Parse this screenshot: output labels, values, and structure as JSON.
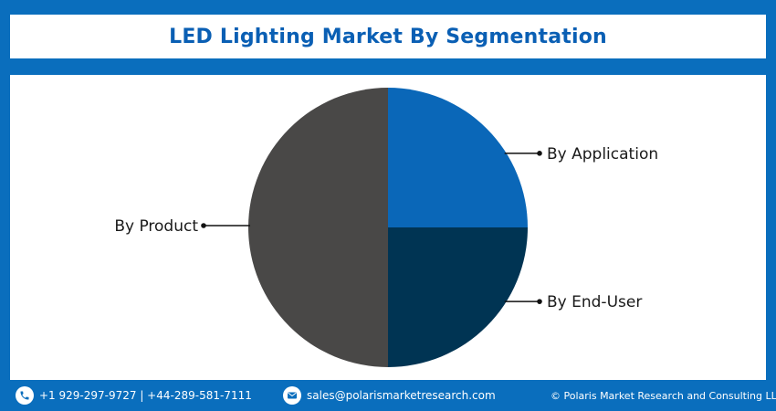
{
  "chart_data": {
    "type": "pie",
    "title": "LED Lighting Market By Segmentation",
    "slices": [
      {
        "label": "By Application",
        "value": 25,
        "color": "#0a67b8"
      },
      {
        "label": "By End-User",
        "value": 25,
        "color": "#003453"
      },
      {
        "label": "By Product",
        "value": 50,
        "color": "#494847"
      }
    ]
  },
  "footer": {
    "phone": "+1 929-297-9727 | +44-289-581-7111",
    "email": "sales@polarismarketresearch.com",
    "copyright": "© Polaris Market Research and Consulting LLP",
    "phone_icon": "phone-icon",
    "email_icon": "email-icon"
  },
  "colors": {
    "frame": "#0a6ebd",
    "title": "#0a5fb4"
  }
}
